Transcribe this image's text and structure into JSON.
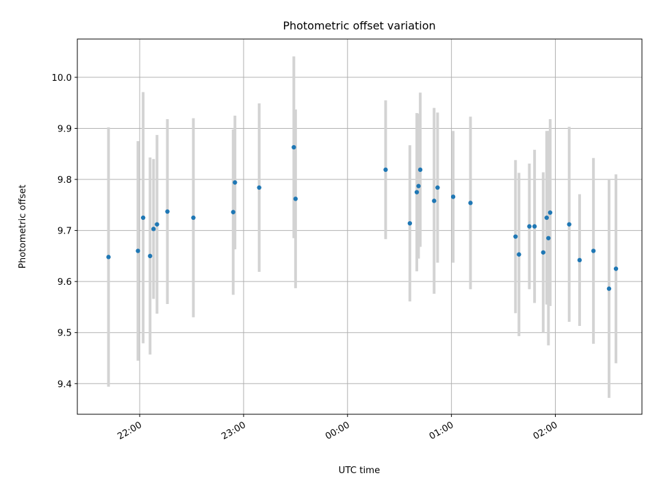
{
  "chart_data": {
    "type": "scatter",
    "title": "Photometric offset variation",
    "xlabel": "UTC time",
    "ylabel": "Photometric offset",
    "x_axis": {
      "kind": "time",
      "range": [
        "21:24",
        "02:50"
      ],
      "ticks": [
        {
          "t": "22:00",
          "label": "22:00"
        },
        {
          "t": "23:00",
          "label": "23:00"
        },
        {
          "t": "00:00",
          "label": "00:00"
        },
        {
          "t": "01:00",
          "label": "01:00"
        },
        {
          "t": "02:00",
          "label": "02:00"
        }
      ]
    },
    "y_axis": {
      "range": [
        9.34,
        10.075
      ],
      "ticks": [
        9.4,
        9.5,
        9.6,
        9.7,
        9.8,
        9.9,
        10.0
      ],
      "tick_labels": [
        "9.4",
        "9.5",
        "9.6",
        "9.7",
        "9.8",
        "9.9",
        "10.0"
      ]
    },
    "grid": true,
    "colors": {
      "points": "#1f77b4",
      "error_bars": "#d3d3d3"
    },
    "points": [
      {
        "t": "21:42",
        "y": 9.648,
        "err": 0.254
      },
      {
        "t": "21:59",
        "y": 9.66,
        "err": 0.215
      },
      {
        "t": "22:02",
        "y": 9.725,
        "err": 0.246
      },
      {
        "t": "22:06",
        "y": 9.65,
        "err": 0.193
      },
      {
        "t": "22:08",
        "y": 9.703,
        "err": 0.137
      },
      {
        "t": "22:10",
        "y": 9.712,
        "err": 0.175
      },
      {
        "t": "22:16",
        "y": 9.737,
        "err": 0.181
      },
      {
        "t": "22:31",
        "y": 9.725,
        "err": 0.195
      },
      {
        "t": "22:54",
        "y": 9.736,
        "err": 0.162
      },
      {
        "t": "22:55",
        "y": 9.794,
        "err": 0.131
      },
      {
        "t": "23:09",
        "y": 9.784,
        "err": 0.165
      },
      {
        "t": "23:29",
        "y": 9.863,
        "err": 0.178
      },
      {
        "t": "23:30",
        "y": 9.762,
        "err": 0.175
      },
      {
        "t": "00:22",
        "y": 9.819,
        "err": 0.136
      },
      {
        "t": "00:36",
        "y": 9.714,
        "err": 0.153
      },
      {
        "t": "00:40",
        "y": 9.775,
        "err": 0.155
      },
      {
        "t": "00:41",
        "y": 9.787,
        "err": 0.142
      },
      {
        "t": "00:42",
        "y": 9.819,
        "err": 0.151
      },
      {
        "t": "00:50",
        "y": 9.758,
        "err": 0.182
      },
      {
        "t": "00:52",
        "y": 9.784,
        "err": 0.147
      },
      {
        "t": "01:01",
        "y": 9.766,
        "err": 0.129
      },
      {
        "t": "01:11",
        "y": 9.754,
        "err": 0.169
      },
      {
        "t": "01:37",
        "y": 9.688,
        "err": 0.15
      },
      {
        "t": "01:39",
        "y": 9.653,
        "err": 0.16
      },
      {
        "t": "01:45",
        "y": 9.708,
        "err": 0.123
      },
      {
        "t": "01:48",
        "y": 9.708,
        "err": 0.15
      },
      {
        "t": "01:53",
        "y": 9.657,
        "err": 0.157
      },
      {
        "t": "01:55",
        "y": 9.725,
        "err": 0.17
      },
      {
        "t": "01:56",
        "y": 9.685,
        "err": 0.21
      },
      {
        "t": "01:57",
        "y": 9.735,
        "err": 0.183
      },
      {
        "t": "02:08",
        "y": 9.712,
        "err": 0.191
      },
      {
        "t": "02:14",
        "y": 9.642,
        "err": 0.129
      },
      {
        "t": "02:22",
        "y": 9.66,
        "err": 0.182
      },
      {
        "t": "02:31",
        "y": 9.586,
        "err": 0.214
      },
      {
        "t": "02:35",
        "y": 9.625,
        "err": 0.185
      }
    ]
  }
}
